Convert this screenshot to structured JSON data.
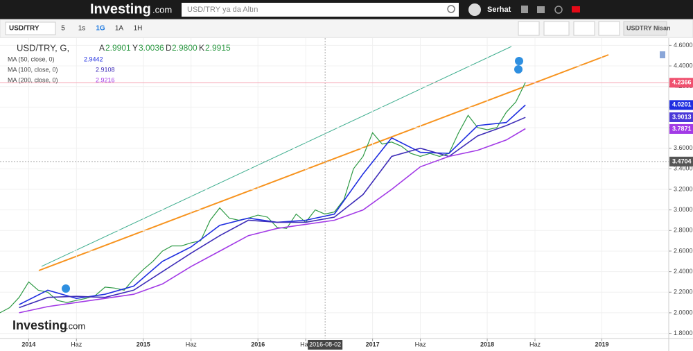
{
  "header": {
    "logo": "Investing",
    "logo_suffix": ".com",
    "search_placeholder": "USD/TRY ya da Altın",
    "user": "Serhat"
  },
  "toolbar": {
    "symbol": "USD/TRY",
    "intervals": [
      "5",
      "1s",
      "1G",
      "1A",
      "1H"
    ],
    "active_interval": 2,
    "contract": "USDTRY Nisan"
  },
  "legend": {
    "title": "USD/TRY, G,",
    "fields": [
      {
        "key": "A",
        "value": "2.9901"
      },
      {
        "key": "Y",
        "value": "3.0036"
      },
      {
        "key": "D",
        "value": "2.9800"
      },
      {
        "key": "K",
        "value": "2.9915"
      }
    ],
    "indicators": [
      {
        "name": "MA (50, close, 0)",
        "value": "2.9442",
        "color": "#1f2ee0"
      },
      {
        "name": "MA (100, close, 0)",
        "value": "2.9108",
        "color": "#3e2db8"
      },
      {
        "name": "MA (200, close, 0)",
        "value": "2.9216",
        "color": "#a23ae6"
      }
    ]
  },
  "watermark": {
    "logo": "Investing",
    "logo_suffix": ".com"
  },
  "chart": {
    "type": "line",
    "xlim": [
      "2013-10",
      "2019-08"
    ],
    "ylim": [
      1.75,
      4.67
    ],
    "xticks": [
      {
        "value": "2014-01",
        "label": "2014"
      },
      {
        "value": "2014-06",
        "label": "Haz"
      },
      {
        "value": "2015-01",
        "label": "2015"
      },
      {
        "value": "2015-06",
        "label": "Haz"
      },
      {
        "value": "2016-01",
        "label": "2016"
      },
      {
        "value": "2016-06",
        "label": "Haz"
      },
      {
        "value": "2017-01",
        "label": "2017"
      },
      {
        "value": "2017-06",
        "label": "Haz"
      },
      {
        "value": "2018-01",
        "label": "2018"
      },
      {
        "value": "2018-06",
        "label": "Haz"
      },
      {
        "value": "2019-01",
        "label": "2019"
      }
    ],
    "yticks": [
      {
        "value": 1.8,
        "label": "1.8000"
      },
      {
        "value": 2.0,
        "label": "2.0000"
      },
      {
        "value": 2.2,
        "label": "2.2000"
      },
      {
        "value": 2.4,
        "label": "2.4000"
      },
      {
        "value": 2.6,
        "label": "2.6000"
      },
      {
        "value": 2.8,
        "label": "2.8000"
      },
      {
        "value": 3.0,
        "label": "3.0000"
      },
      {
        "value": 3.2,
        "label": "3.2000"
      },
      {
        "value": 3.4,
        "label": "3.4000"
      },
      {
        "value": 3.6,
        "label": "3.6000"
      },
      {
        "value": 3.8,
        "label": "3.8000"
      },
      {
        "value": 4.0,
        "label": "4.0000"
      },
      {
        "value": 4.2,
        "label": "4.2000"
      },
      {
        "value": 4.4,
        "label": "4.4000"
      },
      {
        "value": 4.6,
        "label": "4.6000"
      }
    ],
    "grid": true,
    "crosshair": {
      "x": "2016-08-02",
      "y": 3.4704
    },
    "series": [
      {
        "name": "USD/TRY",
        "color": "#2e9a45",
        "x": [
          "2013-10",
          "2013-11",
          "2013-12",
          "2014-01",
          "2014-02",
          "2014-03",
          "2014-04",
          "2014-05",
          "2014-06",
          "2014-07",
          "2014-08",
          "2014-09",
          "2014-10",
          "2014-11",
          "2014-12",
          "2015-01",
          "2015-02",
          "2015-03",
          "2015-04",
          "2015-05",
          "2015-06",
          "2015-07",
          "2015-08",
          "2015-09",
          "2015-10",
          "2015-11",
          "2015-12",
          "2016-01",
          "2016-02",
          "2016-03",
          "2016-04",
          "2016-05",
          "2016-06",
          "2016-07",
          "2016-08",
          "2016-09",
          "2016-10",
          "2016-11",
          "2016-12",
          "2017-01",
          "2017-02",
          "2017-03",
          "2017-04",
          "2017-05",
          "2017-06",
          "2017-07",
          "2017-08",
          "2017-09",
          "2017-10",
          "2017-11",
          "2017-12",
          "2018-01",
          "2018-02",
          "2018-03",
          "2018-04",
          "2018-05"
        ],
        "values": [
          2.0,
          2.05,
          2.15,
          2.3,
          2.22,
          2.2,
          2.12,
          2.1,
          2.12,
          2.14,
          2.17,
          2.25,
          2.24,
          2.22,
          2.33,
          2.42,
          2.5,
          2.6,
          2.65,
          2.65,
          2.68,
          2.7,
          2.9,
          3.02,
          2.92,
          2.9,
          2.92,
          2.95,
          2.93,
          2.83,
          2.82,
          2.96,
          2.88,
          3.0,
          2.96,
          2.98,
          3.1,
          3.4,
          3.52,
          3.75,
          3.64,
          3.66,
          3.62,
          3.55,
          3.52,
          3.55,
          3.52,
          3.55,
          3.75,
          3.92,
          3.8,
          3.78,
          3.8,
          3.95,
          4.05,
          4.24
        ]
      },
      {
        "name": "MA (50, close, 0)",
        "color": "#1f2ee0",
        "x": [
          "2013-12",
          "2014-03",
          "2014-06",
          "2014-09",
          "2014-12",
          "2015-03",
          "2015-06",
          "2015-09",
          "2015-12",
          "2016-03",
          "2016-06",
          "2016-09",
          "2016-12",
          "2017-03",
          "2017-06",
          "2017-09",
          "2017-12",
          "2018-03",
          "2018-05"
        ],
        "values": [
          2.08,
          2.22,
          2.14,
          2.18,
          2.26,
          2.5,
          2.64,
          2.85,
          2.92,
          2.88,
          2.9,
          2.96,
          3.35,
          3.7,
          3.56,
          3.55,
          3.82,
          3.85,
          4.02
        ]
      },
      {
        "name": "MA (100, close, 0)",
        "color": "#3e2db8",
        "x": [
          "2013-12",
          "2014-03",
          "2014-06",
          "2014-09",
          "2014-12",
          "2015-03",
          "2015-06",
          "2015-09",
          "2015-12",
          "2016-03",
          "2016-06",
          "2016-09",
          "2016-12",
          "2017-03",
          "2017-06",
          "2017-09",
          "2017-12",
          "2018-03",
          "2018-05"
        ],
        "values": [
          2.05,
          2.15,
          2.16,
          2.15,
          2.22,
          2.4,
          2.58,
          2.75,
          2.9,
          2.88,
          2.88,
          2.93,
          3.15,
          3.52,
          3.6,
          3.52,
          3.72,
          3.82,
          3.9
        ]
      },
      {
        "name": "MA (200, close, 0)",
        "color": "#a23ae6",
        "x": [
          "2013-12",
          "2014-03",
          "2014-06",
          "2014-09",
          "2014-12",
          "2015-03",
          "2015-06",
          "2015-09",
          "2015-12",
          "2016-03",
          "2016-06",
          "2016-09",
          "2016-12",
          "2017-03",
          "2017-06",
          "2017-09",
          "2017-12",
          "2018-03",
          "2018-05"
        ],
        "values": [
          2.0,
          2.06,
          2.1,
          2.14,
          2.18,
          2.28,
          2.45,
          2.6,
          2.75,
          2.82,
          2.86,
          2.9,
          3.0,
          3.2,
          3.42,
          3.52,
          3.58,
          3.68,
          3.79
        ]
      }
    ],
    "price_tags": [
      {
        "value": 4.2366,
        "color": "#f0506e"
      },
      {
        "value": 4.0201,
        "color": "#1f2ee0"
      },
      {
        "value": 3.9013,
        "color": "#4a38d8"
      },
      {
        "value": 3.7871,
        "color": "#a23ae6"
      },
      {
        "value": 3.4704,
        "color": "#555555"
      }
    ]
  }
}
